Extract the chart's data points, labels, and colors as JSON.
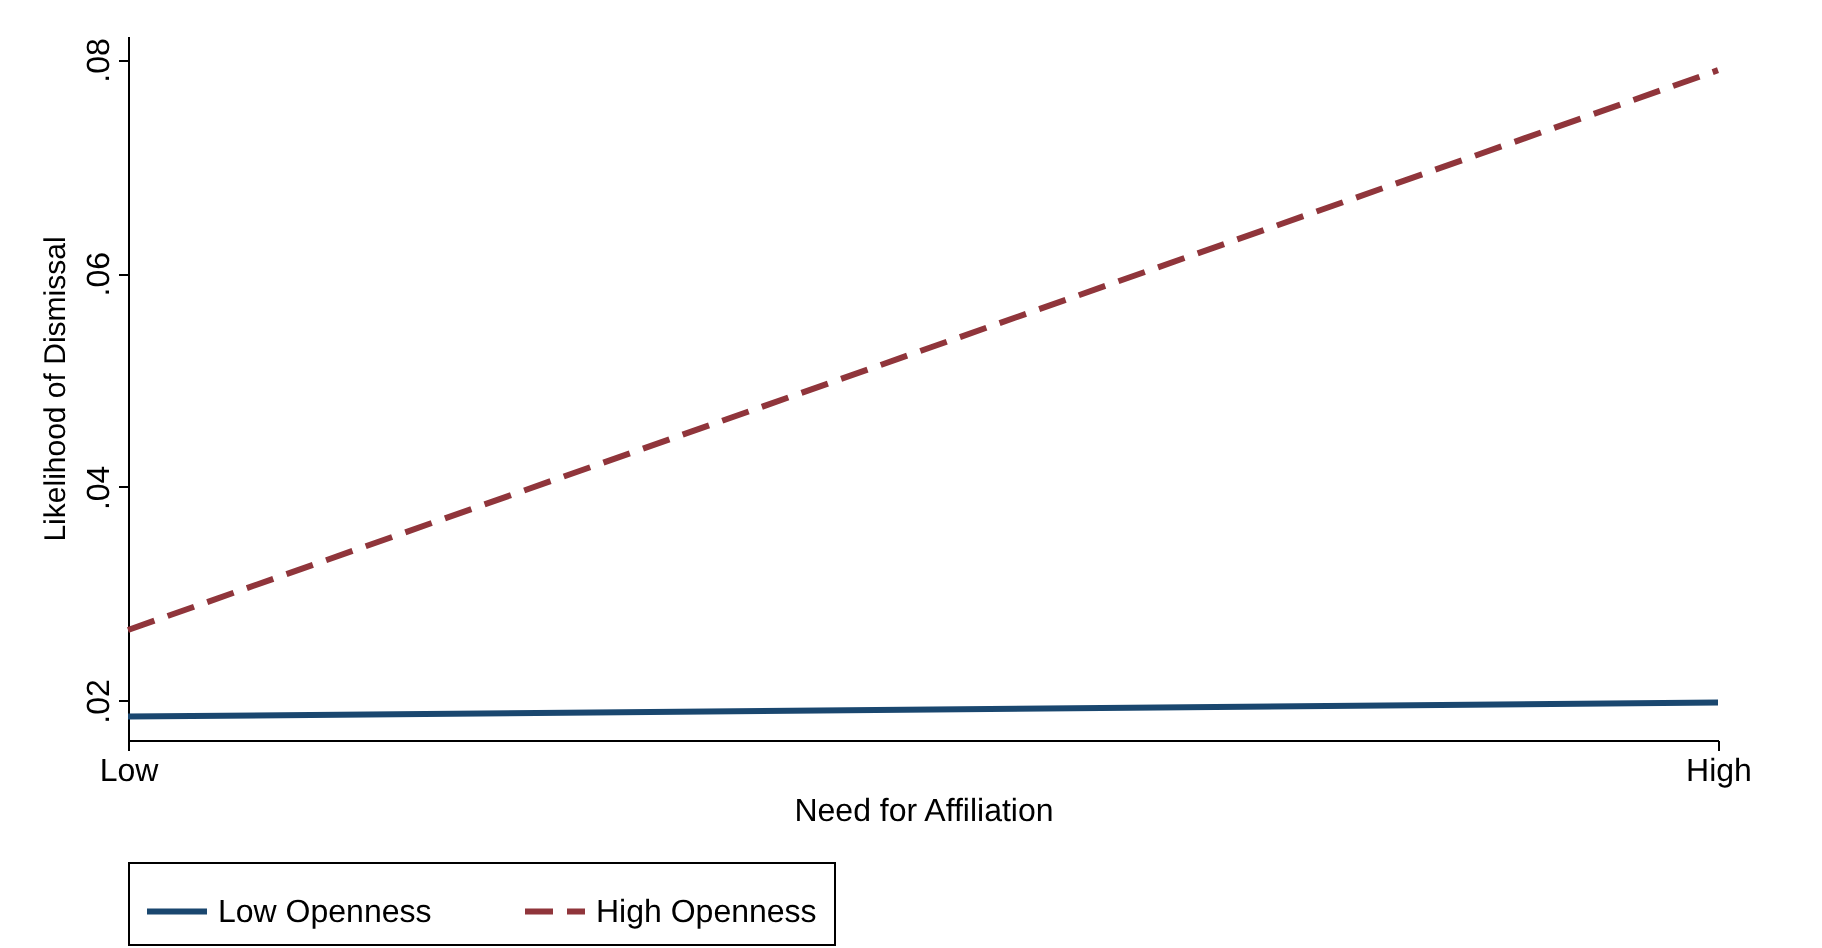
{
  "chart_data": {
    "type": "line",
    "xlabel": "Need for Affiliation",
    "ylabel": "Likelihood of Dismissal",
    "categories": [
      "Low",
      "High"
    ],
    "series": [
      {
        "name": "Low Openness",
        "color": "#1a476f",
        "line_style": "solid",
        "values": [
          0.0185,
          0.0198
        ]
      },
      {
        "name": "High Openness",
        "color": "#90353b",
        "line_style": "dashed",
        "values": [
          0.0266,
          0.079
        ]
      }
    ],
    "ylim": [
      0.0163,
      0.0822
    ],
    "yticks": [
      {
        "value": 0.02,
        "label": ".02"
      },
      {
        "value": 0.04,
        "label": ".04"
      },
      {
        "value": 0.06,
        "label": ".06"
      },
      {
        "value": 0.08,
        "label": ".08"
      }
    ],
    "grid": false,
    "legend": "bottom",
    "marker": "none"
  }
}
